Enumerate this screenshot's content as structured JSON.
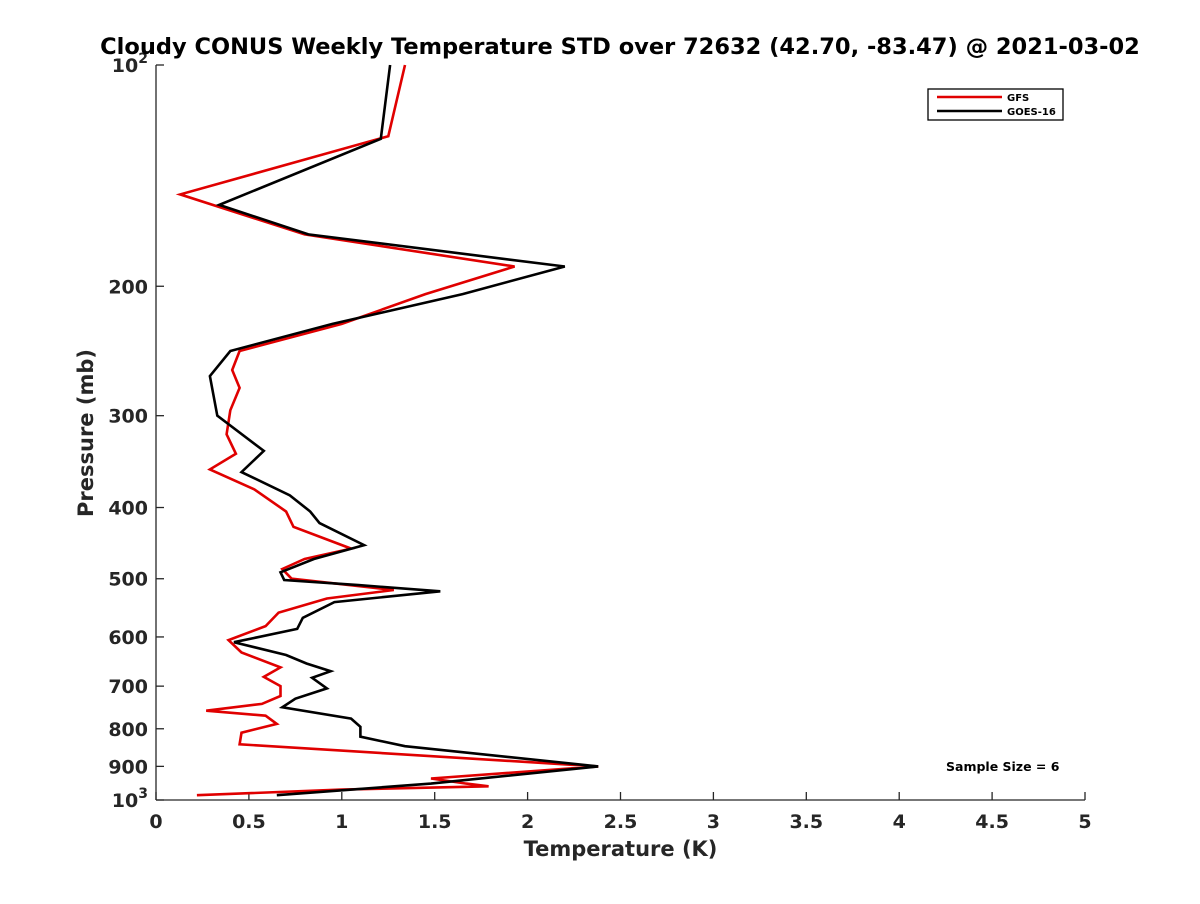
{
  "chart_data": {
    "type": "line",
    "title": "Cloudy CONUS Weekly Temperature STD over 72632 (42.70, -83.47) @ 2021-03-02",
    "xlabel": "Temperature (K)",
    "ylabel": "Pressure (mb)",
    "xlim": [
      0,
      5
    ],
    "ylim": [
      100,
      1000
    ],
    "y_scale": "log",
    "y_reversed": true,
    "x_ticks": [
      0,
      0.5,
      1,
      1.5,
      2,
      2.5,
      3,
      3.5,
      4,
      4.5,
      5
    ],
    "x_tick_labels": [
      "0",
      "0.5",
      "1",
      "1.5",
      "2",
      "2.5",
      "3",
      "3.5",
      "4",
      "4.5",
      "5"
    ],
    "y_ticks": [
      {
        "value": 100,
        "base": "10",
        "exp": "2"
      },
      {
        "value": 200,
        "label": "200"
      },
      {
        "value": 300,
        "label": "300"
      },
      {
        "value": 400,
        "label": "400"
      },
      {
        "value": 500,
        "label": "500"
      },
      {
        "value": 600,
        "label": "600"
      },
      {
        "value": 700,
        "label": "700"
      },
      {
        "value": 800,
        "label": "800"
      },
      {
        "value": 900,
        "label": "900"
      },
      {
        "value": 1000,
        "base": "10",
        "exp": "3"
      }
    ],
    "grid": false,
    "legend_position": "top-right",
    "annotation": "Sample Size = 6",
    "series": [
      {
        "name": "GFS",
        "color": "#e00000",
        "points": [
          [
            1.34,
            100
          ],
          [
            1.25,
            125
          ],
          [
            0.13,
            150
          ],
          [
            0.8,
            170
          ],
          [
            1.93,
            188
          ],
          [
            1.45,
            205
          ],
          [
            1.0,
            225
          ],
          [
            0.45,
            245
          ],
          [
            0.41,
            260
          ],
          [
            0.45,
            275
          ],
          [
            0.4,
            295
          ],
          [
            0.38,
            318
          ],
          [
            0.43,
            338
          ],
          [
            0.29,
            355
          ],
          [
            0.53,
            378
          ],
          [
            0.7,
            405
          ],
          [
            0.74,
            425
          ],
          [
            1.05,
            455
          ],
          [
            0.8,
            470
          ],
          [
            0.68,
            485
          ],
          [
            0.73,
            500
          ],
          [
            0.98,
            508
          ],
          [
            1.28,
            518
          ],
          [
            0.92,
            532
          ],
          [
            0.66,
            556
          ],
          [
            0.59,
            580
          ],
          [
            0.39,
            606
          ],
          [
            0.46,
            630
          ],
          [
            0.67,
            660
          ],
          [
            0.58,
            680
          ],
          [
            0.67,
            700
          ],
          [
            0.67,
            722
          ],
          [
            0.57,
            740
          ],
          [
            0.27,
            756
          ],
          [
            0.59,
            768
          ],
          [
            0.65,
            788
          ],
          [
            0.46,
            810
          ],
          [
            0.45,
            840
          ],
          [
            2.38,
            900
          ],
          [
            1.48,
            935
          ],
          [
            1.67,
            950
          ],
          [
            1.79,
            958
          ],
          [
            1.0,
            968
          ],
          [
            0.22,
            985
          ]
        ]
      },
      {
        "name": "GOES-16",
        "color": "#000000",
        "points": [
          [
            1.26,
            100
          ],
          [
            1.21,
            126
          ],
          [
            0.34,
            155
          ],
          [
            0.82,
            170
          ],
          [
            2.2,
            188
          ],
          [
            1.65,
            205
          ],
          [
            0.95,
            225
          ],
          [
            0.4,
            245
          ],
          [
            0.29,
            265
          ],
          [
            0.33,
            300
          ],
          [
            0.58,
            335
          ],
          [
            0.46,
            358
          ],
          [
            0.72,
            385
          ],
          [
            0.83,
            405
          ],
          [
            0.88,
            420
          ],
          [
            1.12,
            450
          ],
          [
            0.85,
            470
          ],
          [
            0.67,
            490
          ],
          [
            0.69,
            502
          ],
          [
            1.09,
            510
          ],
          [
            1.53,
            520
          ],
          [
            0.96,
            538
          ],
          [
            0.79,
            565
          ],
          [
            0.76,
            585
          ],
          [
            0.42,
            610
          ],
          [
            0.7,
            635
          ],
          [
            0.81,
            652
          ],
          [
            0.94,
            668
          ],
          [
            0.84,
            682
          ],
          [
            0.92,
            705
          ],
          [
            0.75,
            728
          ],
          [
            0.68,
            748
          ],
          [
            1.05,
            775
          ],
          [
            1.1,
            795
          ],
          [
            1.1,
            820
          ],
          [
            1.34,
            845
          ],
          [
            2.38,
            900
          ],
          [
            1.48,
            950
          ],
          [
            0.65,
            985
          ]
        ]
      }
    ]
  }
}
